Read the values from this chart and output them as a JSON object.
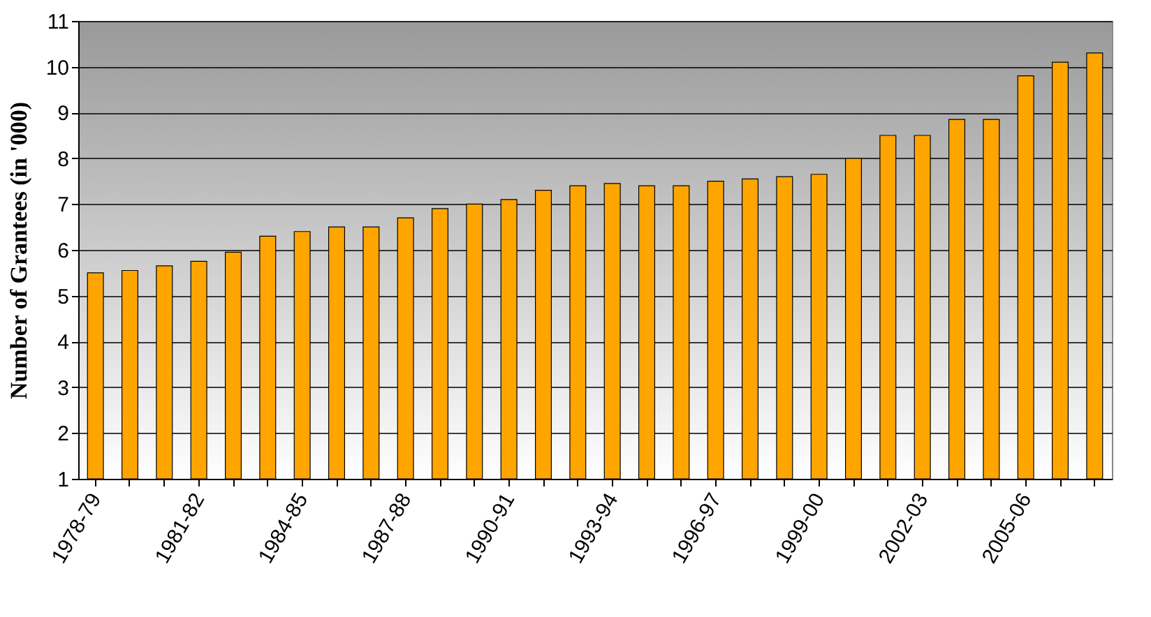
{
  "chart_data": {
    "type": "bar",
    "ylabel": "Number of Grantees (in '000)",
    "categories": [
      "1978-79",
      null,
      null,
      "1981-82",
      null,
      null,
      "1984-85",
      null,
      null,
      "1987-88",
      null,
      null,
      "1990-91",
      null,
      null,
      "1993-94",
      null,
      null,
      "1996-97",
      null,
      null,
      "1999-00",
      null,
      null,
      "2002-03",
      null,
      null,
      "2005-06",
      null,
      null
    ],
    "values": [
      5.5,
      5.55,
      5.65,
      5.75,
      5.95,
      6.3,
      6.4,
      6.5,
      6.5,
      6.7,
      6.9,
      7.0,
      7.1,
      7.3,
      7.4,
      7.45,
      7.4,
      7.4,
      7.5,
      7.55,
      7.6,
      7.65,
      8.0,
      8.5,
      8.5,
      8.85,
      8.85,
      9.8,
      10.1,
      10.3
    ],
    "color": "#ffa500",
    "ylim": [
      1,
      11
    ],
    "yticks": [
      1,
      2,
      3,
      4,
      5,
      6,
      7,
      8,
      9,
      10,
      11
    ],
    "grid": "y"
  }
}
